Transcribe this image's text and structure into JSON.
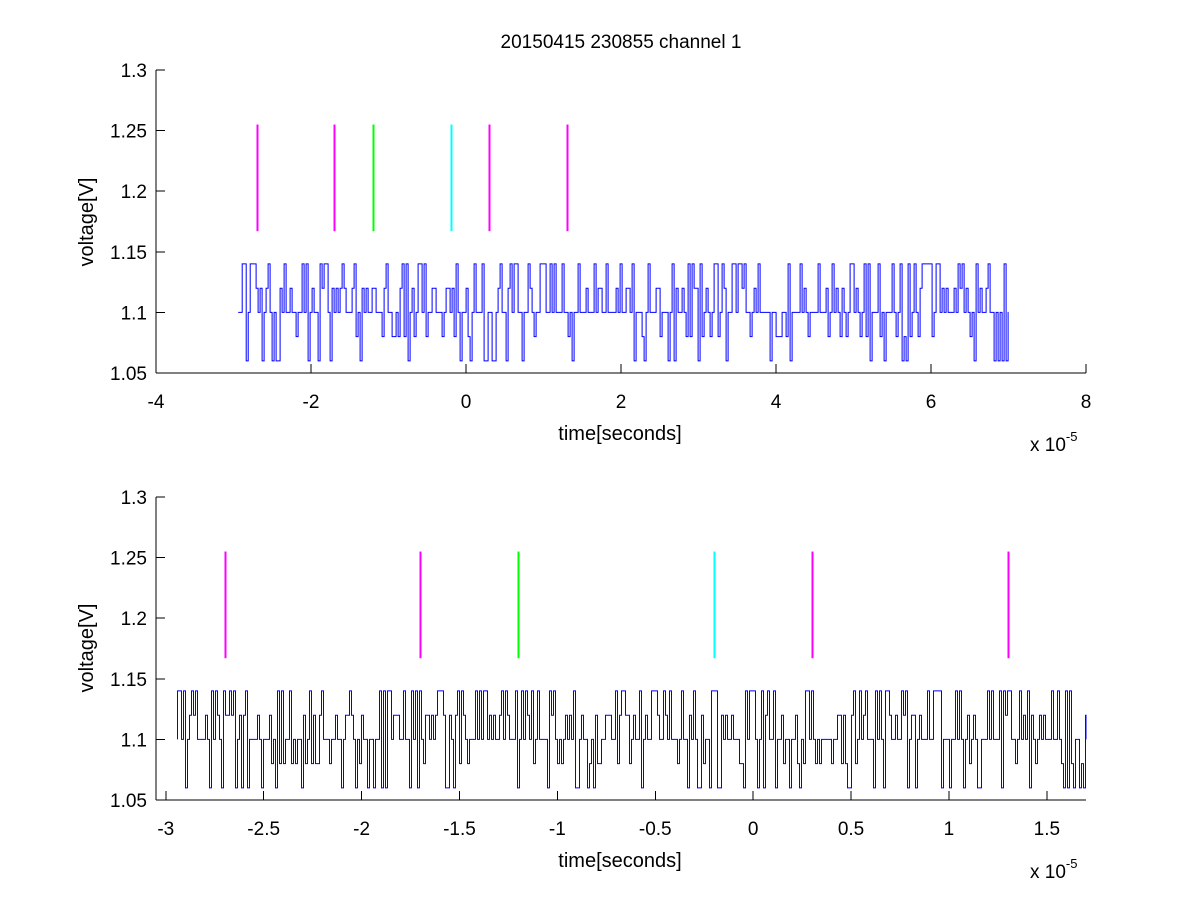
{
  "chart_data": [
    {
      "type": "line",
      "title": "20150415 230855 channel 1",
      "xlabel": "time[seconds]",
      "ylabel": "voltage[V]",
      "x_multiplier_label": "x 10",
      "x_multiplier_exponent": "-5",
      "xlim": [
        -4,
        8
      ],
      "ylim": [
        1.05,
        1.3
      ],
      "xticks": [
        -4,
        -2,
        0,
        2,
        4,
        6,
        8
      ],
      "xtick_labels": [
        "-4",
        "-2",
        "0",
        "2",
        "4",
        "6",
        "8"
      ],
      "yticks": [
        1.05,
        1.1,
        1.15,
        1.2,
        1.25,
        1.3
      ],
      "ytick_labels": [
        "1.05",
        "1.1",
        "1.15",
        "1.2",
        "1.25",
        "1.3"
      ],
      "grid": false,
      "signal": {
        "color": "#0000ff",
        "x_start": -2.94,
        "x_end": 7.0,
        "baseline": 1.1,
        "levels": [
          1.06,
          1.08,
          1.1,
          1.12,
          1.14
        ],
        "noisy_random": true
      },
      "markers": [
        {
          "x": -2.7,
          "y0": 1.167,
          "y1": 1.255,
          "color": "#ff00ff"
        },
        {
          "x": -1.7,
          "y0": 1.167,
          "y1": 1.255,
          "color": "#ff00ff"
        },
        {
          "x": -1.2,
          "y0": 1.167,
          "y1": 1.255,
          "color": "#00ff00"
        },
        {
          "x": -0.2,
          "y0": 1.167,
          "y1": 1.255,
          "color": "#00ffff"
        },
        {
          "x": 0.3,
          "y0": 1.167,
          "y1": 1.255,
          "color": "#ff00ff"
        },
        {
          "x": 1.3,
          "y0": 1.167,
          "y1": 1.255,
          "color": "#ff00ff"
        }
      ]
    },
    {
      "type": "line",
      "title": "",
      "xlabel": "time[seconds]",
      "ylabel": "voltage[V]",
      "x_multiplier_label": "x 10",
      "x_multiplier_exponent": "-5",
      "xlim": [
        -3.05,
        1.7
      ],
      "ylim": [
        1.05,
        1.3
      ],
      "xticks": [
        -3,
        -2.5,
        -2,
        -1.5,
        -1,
        -0.5,
        0,
        0.5,
        1,
        1.5
      ],
      "xtick_labels": [
        "-3",
        "-2.5",
        "-2",
        "-1.5",
        "-1",
        "-0.5",
        "0",
        "0.5",
        "1",
        "1.5"
      ],
      "yticks": [
        1.05,
        1.1,
        1.15,
        1.2,
        1.25,
        1.3
      ],
      "ytick_labels": [
        "1.05",
        "1.1",
        "1.15",
        "1.2",
        "1.25",
        "1.3"
      ],
      "grid": false,
      "signal": {
        "color": "#0000ff",
        "x_start": -2.94,
        "x_end": 1.7,
        "baseline": 1.1,
        "levels": [
          1.06,
          1.08,
          1.1,
          1.12,
          1.14
        ],
        "noisy_random": true
      },
      "markers": [
        {
          "x": -2.7,
          "y0": 1.167,
          "y1": 1.255,
          "color": "#ff00ff"
        },
        {
          "x": -1.7,
          "y0": 1.167,
          "y1": 1.255,
          "color": "#ff00ff"
        },
        {
          "x": -1.2,
          "y0": 1.167,
          "y1": 1.255,
          "color": "#00ff00"
        },
        {
          "x": -0.2,
          "y0": 1.167,
          "y1": 1.255,
          "color": "#00ffff"
        },
        {
          "x": 0.3,
          "y0": 1.167,
          "y1": 1.255,
          "color": "#ff00ff"
        },
        {
          "x": 1.3,
          "y0": 1.167,
          "y1": 1.255,
          "color": "#ff00ff"
        }
      ]
    }
  ]
}
